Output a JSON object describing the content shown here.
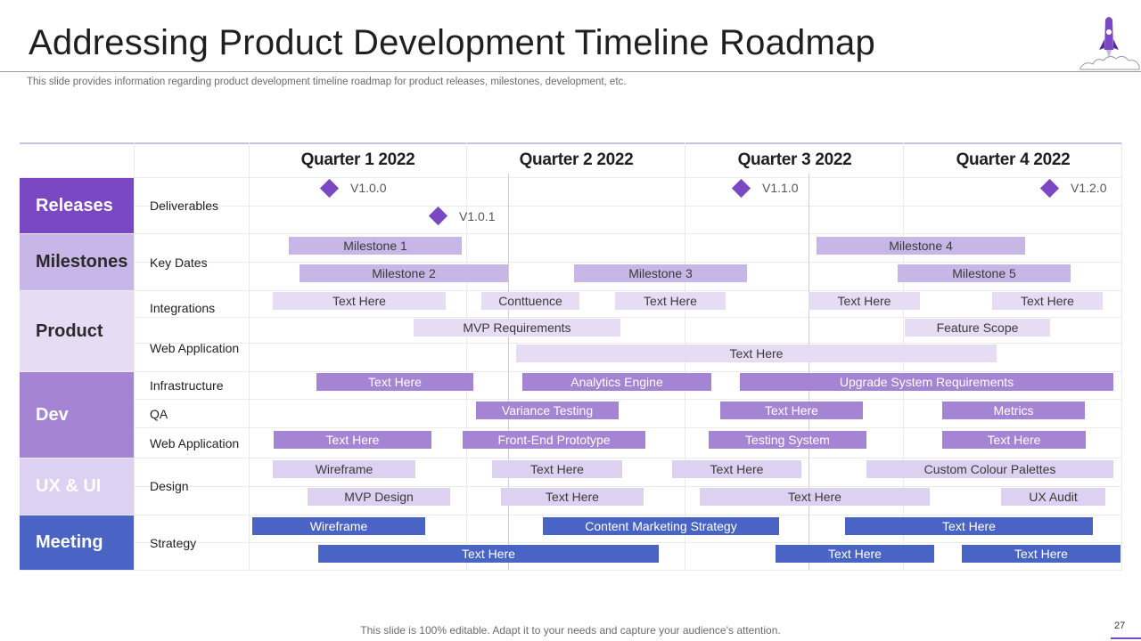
{
  "slide": {
    "title": "Addressing Product Development Timeline Roadmap",
    "subtitle": "This slide provides information regarding product development timeline roadmap for product releases, milestones, development, etc.",
    "footer": "This slide is 100% editable. Adapt it to your needs and capture your audience’s attention.",
    "page_number": "27",
    "logo_icon": "rocket-icon"
  },
  "quarters": [
    "Quarter 1 2022",
    "Quarter 2 2022",
    "Quarter 3 2022",
    "Quarter 4 2022"
  ],
  "categories": [
    {
      "label": "Releases",
      "color": "#7b48c3",
      "text_color": "#ffffff"
    },
    {
      "label": "Milestones",
      "color": "#c9b6e8",
      "text_color": "#2a2a2a"
    },
    {
      "label": "Product",
      "color": "#e6dcf4",
      "text_color": "#2a2a2a"
    },
    {
      "label": "Dev",
      "color": "#a584d4",
      "text_color": "#ffffff"
    },
    {
      "label": "UX & UI",
      "color": "#ddd1f1",
      "text_color": "#ffffff"
    },
    {
      "label": "Meeting",
      "color": "#4a64c5",
      "text_color": "#ffffff"
    }
  ],
  "sublabels": {
    "deliverables": "Deliverables",
    "key_dates": "Key Dates",
    "integrations": "Integrations",
    "web_application_product": "Web Application",
    "infrastructure": "Infrastructure",
    "qa": "QA",
    "web_application_dev": "Web Application",
    "design": "Design",
    "strategy": "Strategy"
  },
  "releases": [
    "V1.0.0",
    "V1.0.1",
    "V1.1.0",
    "V1.2.0"
  ],
  "milestones": [
    "Milestone 1",
    "Milestone 2",
    "Milestone 3",
    "Milestone 4",
    "Milestone 5"
  ],
  "product": [
    "Text Here",
    "Conttuence",
    "Text Here",
    "Text Here",
    "Text Here",
    "MVP Requirements",
    "Feature Scope",
    "Text Here"
  ],
  "dev": [
    "Text Here",
    "Analytics Engine",
    "Upgrade System Requirements",
    "Variance Testing",
    "Text Here",
    "Metrics",
    "Text Here",
    "Front-End Prototype",
    "Testing System",
    "Text Here"
  ],
  "ux": [
    "Wireframe",
    "Text Here",
    "Text Here",
    "Custom Colour Palettes",
    "MVP Design",
    "Text Here",
    "Text Here",
    "UX Audit"
  ],
  "meeting": [
    "Wireframe",
    "Content Marketing Strategy",
    "Text Here",
    "Text Here",
    "Text Here",
    "Text Here"
  ],
  "colors": {
    "accent_purple": "#7b48c3",
    "milestone_bar": "#c7b6e6",
    "product_bar": "#e6dcf4",
    "dev_bar": "#a584d4",
    "ux_bar": "#ddd1f1",
    "meeting_bar": "#4a64c5"
  }
}
